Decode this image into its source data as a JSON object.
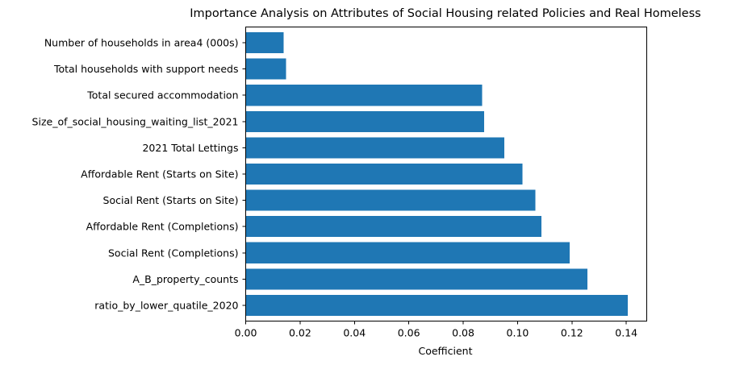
{
  "chart_data": {
    "type": "bar",
    "orientation": "horizontal",
    "title": "Importance Analysis on Attributes of Social Housing related Policies and Real Homeless",
    "xlabel": "Coefficient",
    "ylabel": "",
    "xlim": [
      0.0,
      0.1475
    ],
    "xticks": [
      0.0,
      0.02,
      0.04,
      0.06,
      0.08,
      0.1,
      0.12,
      0.14
    ],
    "xtick_labels": [
      "0.00",
      "0.02",
      "0.04",
      "0.06",
      "0.08",
      "0.10",
      "0.12",
      "0.14"
    ],
    "categories": [
      "ratio_by_lower_quatile_2020",
      "A_B_property_counts",
      "Social Rent (Completions)",
      "Affordable Rent (Completions)",
      "Social Rent (Starts on Site)",
      "Affordable Rent (Starts on Site)",
      "2021 Total Lettings",
      "Size_of_social_housing_waiting_list_2021",
      "Total secured accommodation",
      "Total households with support needs",
      "Number of households in area4 (000s)"
    ],
    "values": [
      0.1405,
      0.1257,
      0.1192,
      0.1088,
      0.1066,
      0.1018,
      0.0951,
      0.0877,
      0.0869,
      0.0148,
      0.0139
    ],
    "bar_color": "#1f77b4",
    "grid": false,
    "legend": "none"
  }
}
